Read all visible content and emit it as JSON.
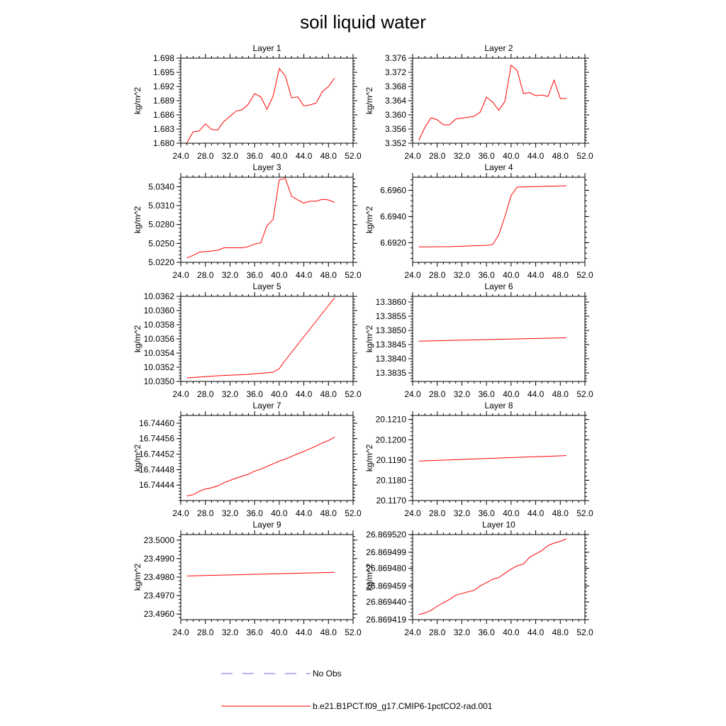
{
  "figure_title": "soil liquid water",
  "colors": {
    "model": "#ff0000",
    "obs": "#6a6adf",
    "frame": "#000000"
  },
  "legend": {
    "obs_label": "No Obs",
    "model_label": "b.e21.B1PCT.f09_g17.CMIP6-1pctCO2-rad.001"
  },
  "chart_data": [
    {
      "type": "line",
      "title": "Layer 1",
      "ylabel": "kg/m^2",
      "xlim": [
        24,
        52
      ],
      "ylim": [
        1.68,
        1.698
      ],
      "x_ticks": [
        "24.0",
        "28.0",
        "32.0",
        "36.0",
        "40.0",
        "44.0",
        "48.0",
        "52.0"
      ],
      "y_ticks": [
        "1.680",
        "1.683",
        "1.686",
        "1.689",
        "1.692",
        "1.695",
        "1.698"
      ],
      "x": [
        25,
        26,
        27,
        28,
        29,
        30,
        31,
        32,
        33,
        34,
        35,
        36,
        37,
        38,
        39,
        40,
        41,
        42,
        43,
        44,
        45,
        46,
        47,
        48,
        49
      ],
      "series": [
        {
          "values": [
            1.6801,
            1.6824,
            1.6826,
            1.6841,
            1.6829,
            1.6828,
            1.6846,
            1.6857,
            1.6868,
            1.6871,
            1.6883,
            1.6905,
            1.6898,
            1.6872,
            1.6899,
            1.6958,
            1.6942,
            1.6896,
            1.6898,
            1.6879,
            1.6881,
            1.6885,
            1.6909,
            1.692,
            1.6938
          ]
        }
      ]
    },
    {
      "type": "line",
      "title": "Layer 2",
      "ylabel": "kg/m^2",
      "xlim": [
        24,
        52
      ],
      "ylim": [
        3.352,
        3.376
      ],
      "x_ticks": [
        "24.0",
        "28.0",
        "32.0",
        "36.0",
        "40.0",
        "44.0",
        "48.0",
        "52.0"
      ],
      "y_ticks": [
        "3.352",
        "3.356",
        "3.360",
        "3.364",
        "3.368",
        "3.372",
        "3.376"
      ],
      "x": [
        25,
        26,
        27,
        28,
        29,
        30,
        31,
        32,
        33,
        34,
        35,
        36,
        37,
        38,
        39,
        40,
        41,
        42,
        43,
        44,
        45,
        46,
        47,
        48,
        49
      ],
      "series": [
        {
          "values": [
            3.3528,
            3.3565,
            3.3592,
            3.3586,
            3.3572,
            3.3572,
            3.3588,
            3.3591,
            3.3593,
            3.3596,
            3.3608,
            3.365,
            3.3636,
            3.3613,
            3.3638,
            3.374,
            3.3725,
            3.366,
            3.3663,
            3.3654,
            3.3656,
            3.3652,
            3.3698,
            3.3646,
            3.3646
          ]
        }
      ]
    },
    {
      "type": "line",
      "title": "Layer 3",
      "ylabel": "kg/m^2",
      "xlim": [
        24,
        52
      ],
      "ylim": [
        5.022,
        5.0355
      ],
      "x_ticks": [
        "24.0",
        "28.0",
        "32.0",
        "36.0",
        "40.0",
        "44.0",
        "48.0",
        "52.0"
      ],
      "y_ticks": [
        "5.0220",
        "5.0250",
        "5.0280",
        "5.0310",
        "5.0340"
      ],
      "x": [
        25,
        26,
        27,
        28,
        29,
        30,
        31,
        32,
        33,
        34,
        35,
        36,
        37,
        38,
        39,
        40,
        41,
        42,
        43,
        44,
        45,
        46,
        47,
        48,
        49
      ],
      "series": [
        {
          "values": [
            5.0227,
            5.0231,
            5.0236,
            5.0237,
            5.0238,
            5.0239,
            5.0243,
            5.0243,
            5.0243,
            5.0243,
            5.0245,
            5.0249,
            5.0251,
            5.0278,
            5.0288,
            5.0351,
            5.0353,
            5.0325,
            5.0319,
            5.0314,
            5.0317,
            5.0317,
            5.032,
            5.0319,
            5.0315
          ]
        }
      ]
    },
    {
      "type": "line",
      "title": "Layer 4",
      "ylabel": "kg/m^2",
      "xlim": [
        24,
        52
      ],
      "ylim": [
        6.6905,
        6.697
      ],
      "x_ticks": [
        "24.0",
        "28.0",
        "32.0",
        "36.0",
        "40.0",
        "44.0",
        "48.0",
        "52.0"
      ],
      "y_ticks": [
        "6.6920",
        "6.6940",
        "6.6960"
      ],
      "x": [
        25,
        30,
        36,
        37,
        38,
        39,
        40,
        41,
        45,
        49
      ],
      "series": [
        {
          "values": [
            6.69168,
            6.6917,
            6.6918,
            6.69185,
            6.6926,
            6.694,
            6.6956,
            6.69625,
            6.6963,
            6.69635
          ]
        }
      ]
    },
    {
      "type": "line",
      "title": "Layer 5",
      "ylabel": "kg/m^2",
      "xlim": [
        24,
        52
      ],
      "ylim": [
        10.035,
        10.0362
      ],
      "x_ticks": [
        "24.0",
        "28.0",
        "32.0",
        "36.0",
        "40.0",
        "44.0",
        "48.0",
        "52.0"
      ],
      "y_ticks": [
        "10.0350",
        "10.0352",
        "10.0354",
        "10.0356",
        "10.0358",
        "10.0360",
        "10.0362"
      ],
      "x": [
        25,
        30,
        35,
        39,
        40,
        41,
        49
      ],
      "series": [
        {
          "values": [
            10.03505,
            10.03508,
            10.0351,
            10.03513,
            10.03518,
            10.0353,
            10.03618
          ]
        }
      ]
    },
    {
      "type": "line",
      "title": "Layer 6",
      "ylabel": "kg/m^2",
      "xlim": [
        24,
        52
      ],
      "ylim": [
        13.3832,
        13.3862
      ],
      "x_ticks": [
        "24.0",
        "28.0",
        "32.0",
        "36.0",
        "40.0",
        "44.0",
        "48.0",
        "52.0"
      ],
      "y_ticks": [
        "13.3835",
        "13.3840",
        "13.3845",
        "13.3850",
        "13.3855",
        "13.3860"
      ],
      "x": [
        25,
        49
      ],
      "series": [
        {
          "values": [
            13.38462,
            13.38474
          ]
        }
      ]
    },
    {
      "type": "line",
      "title": "Layer 7",
      "ylabel": "kg/m^2",
      "xlim": [
        24,
        52
      ],
      "ylim": [
        16.7444,
        16.74462
      ],
      "x_ticks": [
        "24.0",
        "28.0",
        "32.0",
        "36.0",
        "40.0",
        "44.0",
        "48.0",
        "52.0"
      ],
      "y_ticks": [
        "16.74444",
        "16.74448",
        "16.74452",
        "16.74456",
        "16.74460"
      ],
      "x": [
        25,
        26,
        27,
        28,
        29,
        30,
        31,
        32,
        33,
        34,
        35,
        36,
        37,
        38,
        39,
        40,
        41,
        42,
        43,
        44,
        45,
        46,
        47,
        48,
        49
      ],
      "series": [
        {
          "values": [
            16.744412,
            16.744415,
            16.744424,
            16.74443,
            16.744433,
            16.744438,
            16.744446,
            16.744452,
            16.744458,
            16.744463,
            16.744468,
            16.744476,
            16.744481,
            16.744488,
            16.744495,
            16.744502,
            16.744507,
            16.744514,
            16.744521,
            16.744527,
            16.744534,
            16.744541,
            16.744549,
            16.744555,
            16.744564
          ]
        }
      ]
    },
    {
      "type": "line",
      "title": "Layer 8",
      "ylabel": "kg/m^2",
      "xlim": [
        24,
        52
      ],
      "ylim": [
        20.117,
        20.1212
      ],
      "x_ticks": [
        "24.0",
        "28.0",
        "32.0",
        "36.0",
        "40.0",
        "44.0",
        "48.0",
        "52.0"
      ],
      "y_ticks": [
        "20.1170",
        "20.1180",
        "20.1190",
        "20.1200",
        "20.1210"
      ],
      "x": [
        25,
        49
      ],
      "series": [
        {
          "values": [
            20.11895,
            20.11922
          ]
        }
      ]
    },
    {
      "type": "line",
      "title": "Layer 9",
      "ylabel": "kg/m^2",
      "xlim": [
        24,
        52
      ],
      "ylim": [
        23.4957,
        23.5003
      ],
      "x_ticks": [
        "24.0",
        "28.0",
        "32.0",
        "36.0",
        "40.0",
        "44.0",
        "48.0",
        "52.0"
      ],
      "y_ticks": [
        "23.4960",
        "23.4970",
        "23.4980",
        "23.4990",
        "23.5000"
      ],
      "x": [
        25,
        49
      ],
      "series": [
        {
          "values": [
            23.49806,
            23.49826
          ]
        }
      ]
    },
    {
      "type": "line",
      "title": "Layer 10",
      "ylabel": "kg/m^2",
      "xlim": [
        24,
        52
      ],
      "ylim": [
        26.869419,
        26.86952
      ],
      "x_ticks": [
        "24.0",
        "28.0",
        "32.0",
        "36.0",
        "40.0",
        "44.0",
        "48.0",
        "52.0"
      ],
      "y_ticks": [
        "26.869419",
        "26.869440",
        "26.869459",
        "26.869480",
        "26.869499",
        "26.869520"
      ],
      "x": [
        25,
        26,
        27,
        28,
        29,
        30,
        31,
        32,
        33,
        34,
        35,
        36,
        37,
        38,
        39,
        40,
        41,
        42,
        43,
        44,
        45,
        46,
        47,
        48,
        49
      ],
      "series": [
        {
          "values": [
            26.869425,
            26.869427,
            26.86943,
            26.869435,
            26.869439,
            26.869443,
            26.869448,
            26.86945,
            26.869452,
            26.869454,
            26.869459,
            26.869463,
            26.869467,
            26.869469,
            26.869474,
            26.869479,
            26.869483,
            26.869485,
            26.869493,
            26.869497,
            26.869501,
            26.869507,
            26.86951,
            26.869512,
            26.869515
          ]
        }
      ]
    }
  ]
}
